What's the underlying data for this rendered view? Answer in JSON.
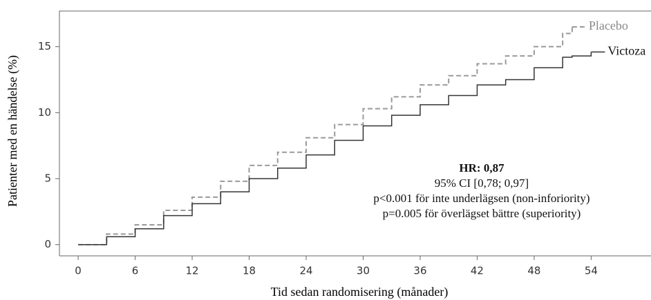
{
  "chart_data": {
    "type": "line",
    "x_label": "Tid sedan randomisering (månader)",
    "y_label": "Patienter med en händelse (%)",
    "x": [
      0,
      3,
      6,
      9,
      12,
      15,
      18,
      21,
      24,
      27,
      30,
      33,
      36,
      39,
      42,
      45,
      48,
      51,
      52,
      54
    ],
    "series": [
      {
        "name": "Placebo",
        "color": "#999999",
        "dashed": true,
        "values": [
          0,
          0.8,
          1.5,
          2.6,
          3.6,
          4.8,
          6.0,
          7.0,
          8.1,
          9.1,
          10.3,
          11.2,
          12.1,
          12.8,
          13.7,
          14.3,
          15.0,
          16.0,
          16.5,
          null
        ]
      },
      {
        "name": "Victoza",
        "color": "#333333",
        "dashed": false,
        "values": [
          0,
          0.6,
          1.2,
          2.2,
          3.1,
          4.0,
          5.0,
          5.8,
          6.8,
          7.9,
          9.0,
          9.8,
          10.6,
          11.3,
          12.1,
          12.5,
          13.4,
          14.2,
          14.3,
          14.6
        ]
      }
    ],
    "annotations": [
      "HR: 0,87",
      "95% CI [0,78; 0,97]",
      "p<0.001 för inte underlägsen (non-inforiority)",
      "p=0.005 för överlägset bättre (superiority)"
    ],
    "xlim": [
      -1.97,
      60.3
    ],
    "ylim": [
      -0.85,
      17.7
    ],
    "xticks": [
      0,
      6,
      12,
      18,
      24,
      30,
      36,
      42,
      48,
      54
    ],
    "yticks": [
      0,
      5,
      10,
      15
    ]
  }
}
